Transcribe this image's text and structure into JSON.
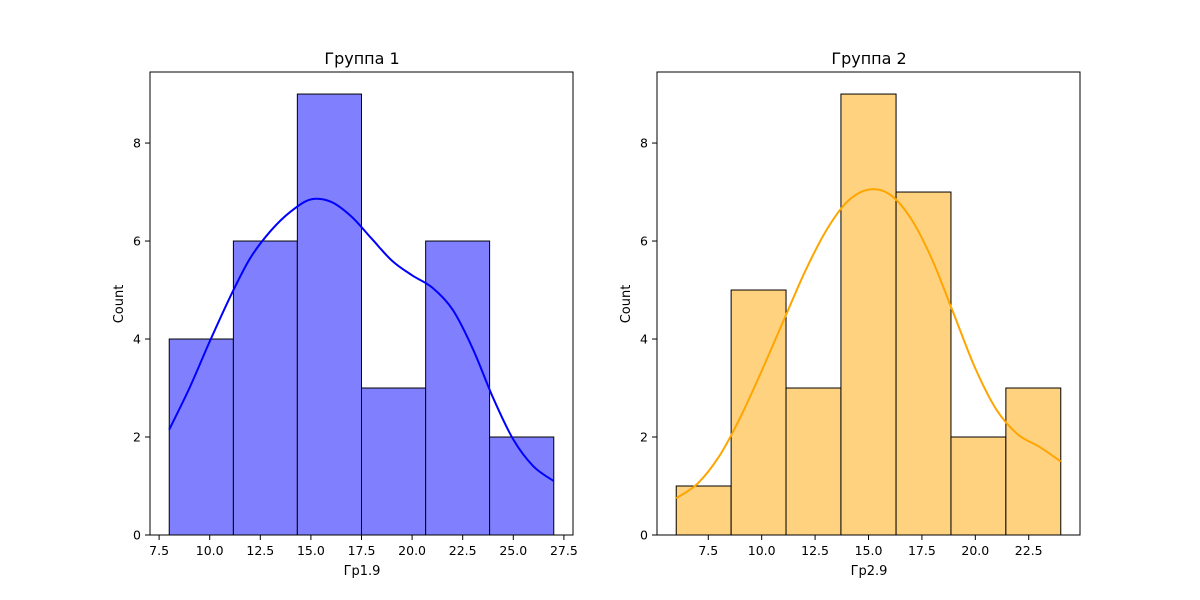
{
  "chart_data": [
    {
      "type": "histogram",
      "title": "Группа 1",
      "xlabel": "Гр1.9",
      "ylabel": "Count",
      "xlim": [
        7.05,
        27.95
      ],
      "ylim": [
        0,
        9.45
      ],
      "xticks": [
        7.5,
        10.0,
        12.5,
        15.0,
        17.5,
        20.0,
        22.5,
        25.0,
        27.5
      ],
      "xtick_labels": [
        "7.5",
        "10.0",
        "12.5",
        "15.0",
        "17.5",
        "20.0",
        "22.5",
        "25.0",
        "27.5"
      ],
      "yticks": [
        0,
        2,
        4,
        6,
        8
      ],
      "ytick_labels": [
        "0",
        "2",
        "4",
        "6",
        "8"
      ],
      "bins": [
        [
          8.0,
          11.17,
          4
        ],
        [
          11.17,
          14.33,
          6
        ],
        [
          14.33,
          17.5,
          9
        ],
        [
          17.5,
          20.67,
          3
        ],
        [
          20.67,
          23.83,
          6
        ],
        [
          23.83,
          27.0,
          2
        ]
      ],
      "kde": [
        [
          8.0,
          2.15
        ],
        [
          9.0,
          3.0
        ],
        [
          10.0,
          3.95
        ],
        [
          11.0,
          4.85
        ],
        [
          12.0,
          5.65
        ],
        [
          13.0,
          6.2
        ],
        [
          14.0,
          6.6
        ],
        [
          15.0,
          6.85
        ],
        [
          16.0,
          6.8
        ],
        [
          17.0,
          6.5
        ],
        [
          18.0,
          6.05
        ],
        [
          19.0,
          5.6
        ],
        [
          20.0,
          5.3
        ],
        [
          21.0,
          5.05
        ],
        [
          22.0,
          4.6
        ],
        [
          23.0,
          3.8
        ],
        [
          24.0,
          2.8
        ],
        [
          25.0,
          1.95
        ],
        [
          26.0,
          1.4
        ],
        [
          27.0,
          1.1
        ]
      ],
      "fill_color": "#8080ff",
      "line_color": "#0000ff",
      "grid": false
    },
    {
      "type": "histogram",
      "title": "Группа 2",
      "xlabel": "Гр2.9",
      "ylabel": "Count",
      "xlim": [
        5.1,
        24.9
      ],
      "ylim": [
        0,
        9.45
      ],
      "xticks": [
        7.5,
        10.0,
        12.5,
        15.0,
        17.5,
        20.0,
        22.5
      ],
      "xtick_labels": [
        "7.5",
        "10.0",
        "12.5",
        "15.0",
        "17.5",
        "20.0",
        "22.5"
      ],
      "yticks": [
        0,
        2,
        4,
        6,
        8
      ],
      "ytick_labels": [
        "0",
        "2",
        "4",
        "6",
        "8"
      ],
      "bins": [
        [
          6.0,
          8.57,
          1
        ],
        [
          8.57,
          11.14,
          5
        ],
        [
          11.14,
          13.71,
          3
        ],
        [
          13.71,
          16.29,
          9
        ],
        [
          16.29,
          18.86,
          7
        ],
        [
          18.86,
          21.43,
          2
        ],
        [
          21.43,
          24.0,
          3
        ]
      ],
      "kde": [
        [
          6.0,
          0.75
        ],
        [
          7.0,
          1.05
        ],
        [
          8.0,
          1.6
        ],
        [
          9.0,
          2.4
        ],
        [
          10.0,
          3.35
        ],
        [
          11.0,
          4.35
        ],
        [
          12.0,
          5.35
        ],
        [
          13.0,
          6.2
        ],
        [
          14.0,
          6.8
        ],
        [
          15.0,
          7.05
        ],
        [
          16.0,
          6.95
        ],
        [
          17.0,
          6.45
        ],
        [
          18.0,
          5.6
        ],
        [
          19.0,
          4.5
        ],
        [
          20.0,
          3.4
        ],
        [
          21.0,
          2.55
        ],
        [
          22.0,
          2.05
        ],
        [
          23.0,
          1.8
        ],
        [
          24.0,
          1.5
        ]
      ],
      "fill_color": "#ffd280",
      "line_color": "#ffa500",
      "grid": false
    }
  ]
}
